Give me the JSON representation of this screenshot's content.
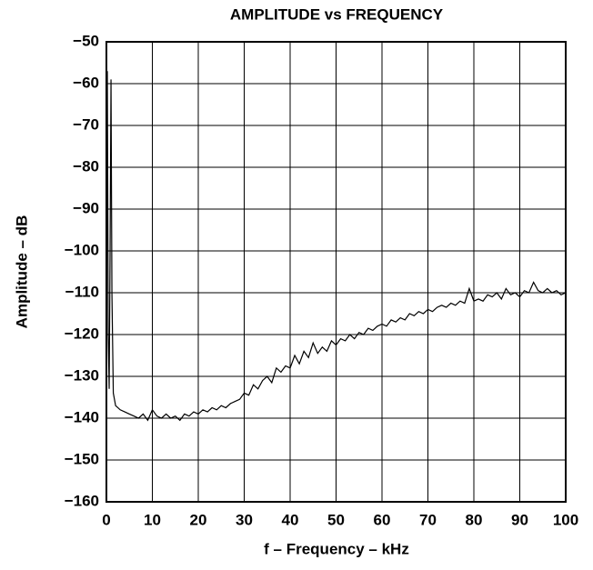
{
  "chart_data": {
    "type": "line",
    "title": "AMPLITUDE vs FREQUENCY",
    "xlabel": "f – Frequency – kHz",
    "ylabel": "Amplitude – dB",
    "xlim": [
      0,
      100
    ],
    "ylim": [
      -160,
      -50
    ],
    "xticks": [
      0,
      10,
      20,
      30,
      40,
      50,
      60,
      70,
      80,
      90,
      100
    ],
    "yticks": [
      {
        "value": -160,
        "label": "−160"
      },
      {
        "value": -150,
        "label": "−150"
      },
      {
        "value": -140,
        "label": "−140"
      },
      {
        "value": -130,
        "label": "−130"
      },
      {
        "value": -120,
        "label": "−120"
      },
      {
        "value": -110,
        "label": "−110"
      },
      {
        "value": -100,
        "label": "−100"
      },
      {
        "value": -90,
        "label": "−90"
      },
      {
        "value": -80,
        "label": "−80"
      },
      {
        "value": -70,
        "label": "−70"
      },
      {
        "value": -60,
        "label": "−60"
      },
      {
        "value": -50,
        "label": "−50"
      }
    ],
    "grid": true,
    "color": "#000000",
    "x": [
      0,
      0.2,
      0.4,
      0.6,
      0.8,
      1.0,
      1.2,
      1.5,
      2,
      3,
      4,
      5,
      6,
      7,
      8,
      9,
      10,
      11,
      12,
      13,
      14,
      15,
      16,
      17,
      18,
      19,
      20,
      21,
      22,
      23,
      24,
      25,
      26,
      27,
      28,
      29,
      30,
      31,
      32,
      33,
      34,
      35,
      36,
      37,
      38,
      39,
      40,
      41,
      42,
      43,
      44,
      45,
      46,
      47,
      48,
      49,
      50,
      51,
      52,
      53,
      54,
      55,
      56,
      57,
      58,
      59,
      60,
      61,
      62,
      63,
      64,
      65,
      66,
      67,
      68,
      69,
      70,
      71,
      72,
      73,
      74,
      75,
      76,
      77,
      78,
      79,
      80,
      81,
      82,
      83,
      84,
      85,
      86,
      87,
      88,
      89,
      90,
      91,
      92,
      93,
      94,
      95,
      96,
      97,
      98,
      99,
      100
    ],
    "values": [
      -95,
      -57,
      -120,
      -133,
      -100,
      -59,
      -110,
      -134,
      -137,
      -138,
      -138.5,
      -139,
      -139.5,
      -140,
      -139,
      -140.5,
      -138,
      -139.5,
      -140,
      -139,
      -140,
      -139.5,
      -140.5,
      -139,
      -139.5,
      -138.5,
      -139,
      -138,
      -138.5,
      -137.5,
      -138,
      -137,
      -137.5,
      -136.5,
      -136,
      -135.5,
      -134,
      -134.5,
      -132,
      -133,
      -131,
      -130,
      -131.5,
      -128,
      -129,
      -127.5,
      -128,
      -125,
      -127,
      -124,
      -125.5,
      -122,
      -124.5,
      -123,
      -124,
      -121.5,
      -122.5,
      -121,
      -121.5,
      -120,
      -121,
      -119.5,
      -120,
      -118.5,
      -119,
      -118,
      -117.5,
      -118,
      -116.5,
      -117,
      -116,
      -116.5,
      -115,
      -115.5,
      -114.5,
      -115,
      -114,
      -114.5,
      -113.5,
      -113,
      -113.5,
      -112.5,
      -113,
      -112,
      -112.5,
      -109,
      -112,
      -111.5,
      -112,
      -110.5,
      -111,
      -110,
      -111.5,
      -109,
      -110.5,
      -110,
      -111,
      -109.5,
      -110,
      -107.5,
      -109.5,
      -110,
      -109,
      -110,
      -109.5,
      -110.5,
      -110
    ]
  }
}
